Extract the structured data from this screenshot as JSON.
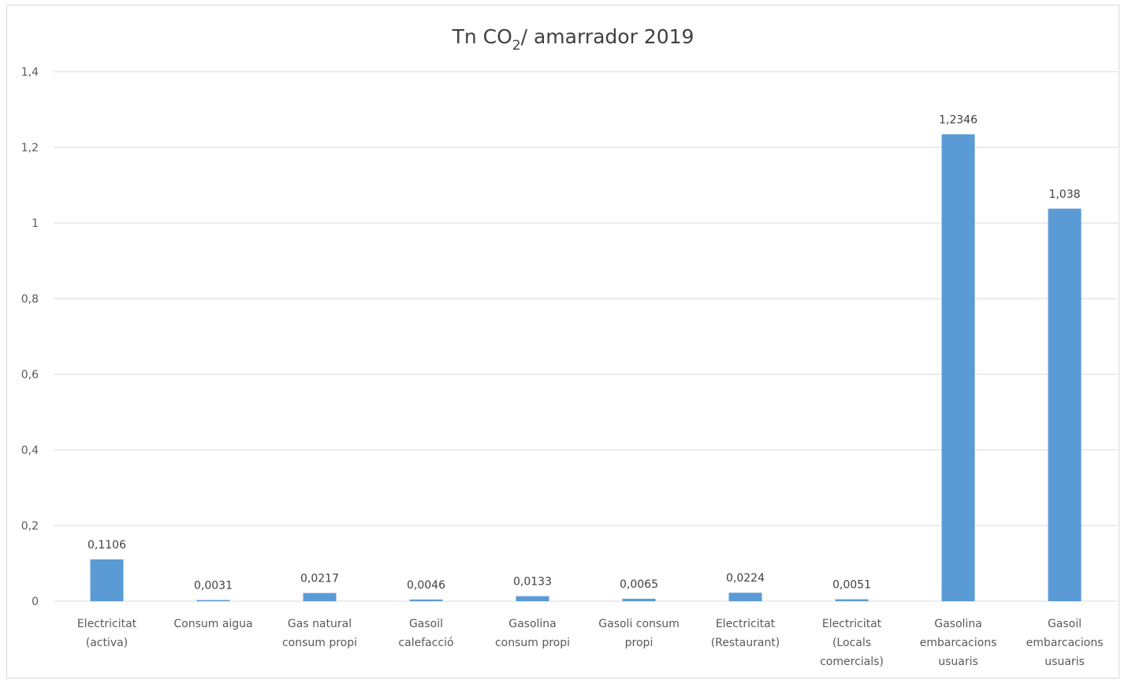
{
  "chart_data": {
    "type": "bar",
    "title": {
      "main": "Tn CO",
      "subscript": "2",
      "rest": "/ amarrador 2019"
    },
    "categories": [
      [
        "Electricitat",
        "(activa)"
      ],
      [
        "Consum aigua"
      ],
      [
        "Gas natural",
        "consum propi"
      ],
      [
        "Gasoil",
        "calefacció"
      ],
      [
        "Gasolina",
        "consum propi"
      ],
      [
        "Gasoli consum",
        "propi"
      ],
      [
        "Electricitat",
        "(Restaurant)"
      ],
      [
        "Electricitat",
        "(Locals",
        "comercials)"
      ],
      [
        "Gasolina",
        "embarcacions",
        "usuaris"
      ],
      [
        "Gasoil",
        "embarcacions",
        "usuaris"
      ]
    ],
    "values": [
      0.1106,
      0.0031,
      0.0217,
      0.0046,
      0.0133,
      0.0065,
      0.0224,
      0.0051,
      1.2346,
      1.038
    ],
    "data_labels": [
      "0,1106",
      "0,0031",
      "0,0217",
      "0,0046",
      "0,0133",
      "0,0065",
      "0,0224",
      "0,0051",
      "1,2346",
      "1,038"
    ],
    "yticks": [
      0,
      0.2,
      0.4,
      0.6,
      0.8,
      1,
      1.2,
      1.4
    ],
    "ytick_labels": [
      "0",
      "0,2",
      "0,4",
      "0,6",
      "0,8",
      "1",
      "1,2",
      "1,4"
    ],
    "ylim": [
      0,
      1.4
    ],
    "grid": true,
    "legend": "none",
    "bar_color": "#5b9bd5"
  }
}
